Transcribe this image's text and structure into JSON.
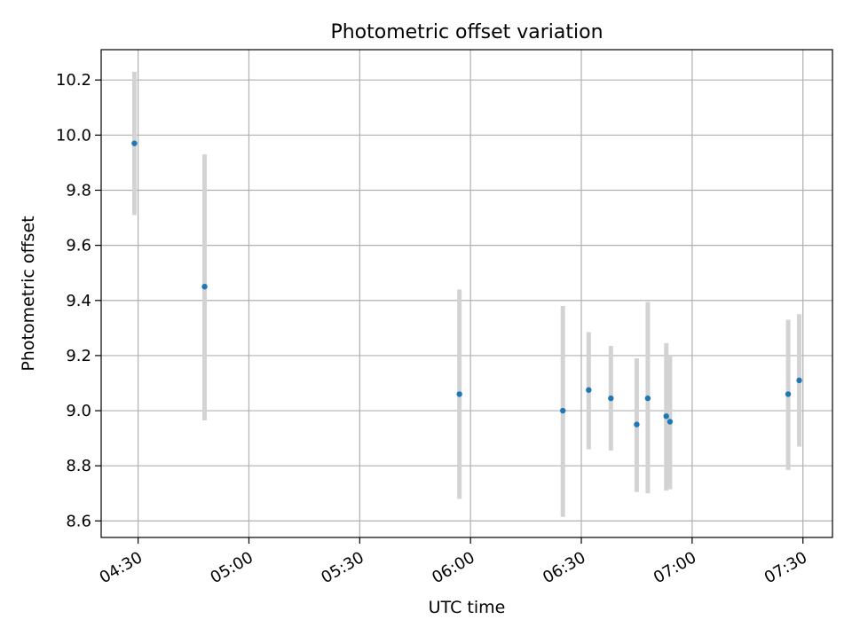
{
  "chart_data": {
    "type": "scatter",
    "title": "Photometric offset variation",
    "xlabel": "UTC time",
    "ylabel": "Photometric offset",
    "xlim": [
      "04:20",
      "07:38"
    ],
    "ylim": [
      8.54,
      10.31
    ],
    "x_ticks": [
      "04:30",
      "05:00",
      "05:30",
      "06:00",
      "06:30",
      "07:00",
      "07:30"
    ],
    "y_ticks": [
      8.6,
      8.8,
      9.0,
      9.2,
      9.4,
      9.6,
      9.8,
      10.0,
      10.2
    ],
    "y_tick_labels": [
      "8.6",
      "8.8",
      "9.0",
      "9.2",
      "9.4",
      "9.6",
      "9.8",
      "10.0",
      "10.2"
    ],
    "grid": true,
    "series": [
      {
        "points": [
          {
            "x": "04:29",
            "y": 9.97,
            "low": 9.71,
            "high": 10.23
          },
          {
            "x": "04:48",
            "y": 9.45,
            "low": 8.965,
            "high": 9.93
          },
          {
            "x": "05:57",
            "y": 9.06,
            "low": 8.68,
            "high": 9.44
          },
          {
            "x": "06:25",
            "y": 9.0,
            "low": 8.615,
            "high": 9.38
          },
          {
            "x": "06:32",
            "y": 9.075,
            "low": 8.86,
            "high": 9.285
          },
          {
            "x": "06:38",
            "y": 9.045,
            "low": 8.855,
            "high": 9.235
          },
          {
            "x": "06:45",
            "y": 8.95,
            "low": 8.705,
            "high": 9.19
          },
          {
            "x": "06:48",
            "y": 9.045,
            "low": 8.7,
            "high": 9.395
          },
          {
            "x": "06:53",
            "y": 8.98,
            "low": 8.71,
            "high": 9.245
          },
          {
            "x": "06:54",
            "y": 8.96,
            "low": 8.715,
            "high": 9.2
          },
          {
            "x": "07:26",
            "y": 9.06,
            "low": 8.785,
            "high": 9.33
          },
          {
            "x": "07:29",
            "y": 9.11,
            "low": 8.87,
            "high": 9.35
          }
        ]
      }
    ],
    "colors": {
      "point": "#1f77b4",
      "errorbar": "#d3d3d3",
      "grid": "#b0b0b0",
      "axes": "#000000"
    }
  }
}
